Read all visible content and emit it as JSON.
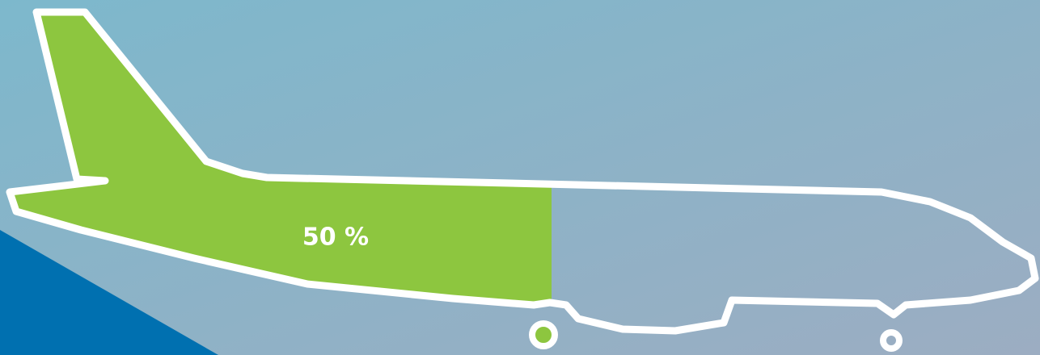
{
  "chart_data": {
    "type": "fill",
    "values": [
      50
    ],
    "value_labels": [
      "50 %"
    ],
    "ylim": [
      0,
      100
    ],
    "color": "#8dc63f"
  }
}
